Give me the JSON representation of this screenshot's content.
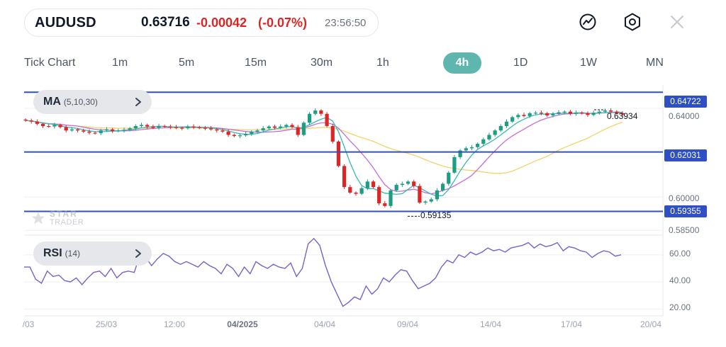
{
  "header": {
    "symbol": "AUDUSD",
    "price": "0.63716",
    "change": "-0.00042",
    "change_pct": "(-0.07%)",
    "time": "23:56:50",
    "icons": [
      "chart-line-icon",
      "settings-hexagon-icon",
      "close-icon"
    ]
  },
  "timeframes": {
    "items": [
      "Tick Chart",
      "1m",
      "5m",
      "15m",
      "30m",
      "1h",
      "4h",
      "1D",
      "1W",
      "MN"
    ],
    "active": "4h"
  },
  "indicators": {
    "ma": {
      "name": "MA",
      "params": "(5,10,30)"
    },
    "rsi": {
      "name": "RSI",
      "params": "(14)"
    }
  },
  "watermark": {
    "top": "STAR",
    "bottom": "TRADER"
  },
  "colors": {
    "accent": "#5fb6ae",
    "down": "#dc2626",
    "up": "#1e9c84",
    "level_line": "#2f4fc4",
    "ma5": "#3bb8b0",
    "ma10": "#c46fd6",
    "ma30": "#f0d36b",
    "rsi": "#7b61c9"
  },
  "chart_data": [
    {
      "type": "candlestick",
      "title": "AUDUSD 4h",
      "price_axis": [
        "0.64000",
        "0.60000",
        "0.58500"
      ],
      "horizontal_levels": [
        "0.64722",
        "0.62031",
        "0.59355"
      ],
      "annotations": {
        "high": "0.63934",
        "low": "0.59135"
      },
      "ylim": [
        0.5835,
        0.6505
      ],
      "x_ticks": [
        "/03",
        "25/03",
        "12:00",
        "04/2025",
        "04/04",
        "09/04",
        "14/04",
        "17/04",
        "20/04"
      ],
      "series": [
        {
          "name": "Price",
          "close": [
            0.6345,
            0.634,
            0.633,
            0.632,
            0.6318,
            0.6325,
            0.6315,
            0.63,
            0.6305,
            0.63,
            0.6295,
            0.629,
            0.6288,
            0.63,
            0.6305,
            0.6298,
            0.63,
            0.6303,
            0.631,
            0.632,
            0.6325,
            0.6318,
            0.6312,
            0.632,
            0.6318,
            0.6315,
            0.6312,
            0.631,
            0.6318,
            0.6315,
            0.6312,
            0.631,
            0.6305,
            0.63,
            0.6295,
            0.628,
            0.6275,
            0.6278,
            0.6285,
            0.6295,
            0.63,
            0.631,
            0.6318,
            0.6312,
            0.6318,
            0.6325,
            0.6315,
            0.628,
            0.6335,
            0.6375,
            0.639,
            0.6375,
            0.632,
            0.625,
            0.614,
            0.6045,
            0.602,
            0.6015,
            0.604,
            0.607,
            0.6045,
            0.5972,
            0.596,
            0.603,
            0.6055,
            0.606,
            0.607,
            0.605,
            0.5975,
            0.598,
            0.599,
            0.603,
            0.606,
            0.611,
            0.618,
            0.621,
            0.622,
            0.6225,
            0.624,
            0.626,
            0.628,
            0.63,
            0.632,
            0.634,
            0.636,
            0.637,
            0.6365,
            0.6378,
            0.638,
            0.6378,
            0.6368,
            0.6375,
            0.6382,
            0.6385,
            0.6375,
            0.638,
            0.6378,
            0.637,
            0.638,
            0.6385,
            0.639,
            0.6385,
            0.6378,
            0.6372
          ]
        },
        {
          "name": "MA5",
          "period": 5
        },
        {
          "name": "MA10",
          "period": 10
        },
        {
          "name": "MA30",
          "period": 30
        }
      ]
    },
    {
      "type": "line",
      "title": "RSI (14)",
      "y_ticks": [
        "60.00",
        "40.00",
        "20.00"
      ],
      "ylim": [
        15,
        74
      ],
      "series": [
        {
          "name": "RSI",
          "values": [
            51,
            51,
            42,
            39,
            48,
            44,
            45,
            41,
            40,
            43,
            38,
            43,
            47,
            48,
            44,
            50,
            43,
            47,
            48,
            47,
            60,
            58,
            52,
            57,
            61,
            59,
            55,
            53,
            55,
            53,
            51,
            55,
            52,
            50,
            46,
            53,
            50,
            44,
            51,
            46,
            55,
            52,
            50,
            53,
            51,
            50,
            54,
            44,
            50,
            68,
            72,
            67,
            52,
            40,
            31,
            22,
            25,
            29,
            27,
            37,
            31,
            35,
            43,
            40,
            45,
            49,
            48,
            41,
            35,
            37,
            39,
            43,
            51,
            56,
            54,
            60,
            58,
            62,
            60,
            62,
            65,
            63,
            64,
            62,
            65,
            66,
            67,
            69,
            65,
            68,
            66,
            67,
            69,
            63,
            66,
            65,
            63,
            62,
            58,
            61,
            63,
            62,
            59,
            60
          ]
        }
      ]
    }
  ]
}
